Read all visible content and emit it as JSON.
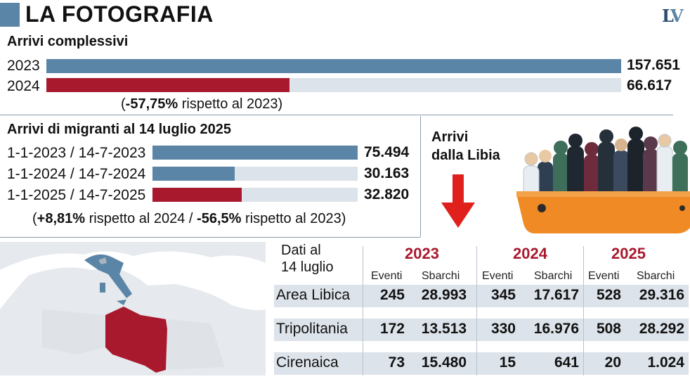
{
  "header": {
    "title": "LA FOTOGRAFIA",
    "logo": "LV"
  },
  "colors": {
    "blue": "#5b85a6",
    "red": "#a8192e",
    "track": "#dde3ea",
    "arrow": "#e0201c",
    "boat": "#f08a24"
  },
  "totals": {
    "title": "Arrivi complessivi",
    "rows": [
      {
        "label": "2023",
        "value_text": "157.651",
        "value": 157651,
        "color": "blue"
      },
      {
        "label": "2024",
        "value_text": "66.617",
        "value": 66617,
        "color": "red"
      }
    ],
    "note_open": "(",
    "note_pct": "-57,75%",
    "note_rest": " rispetto al 2023)"
  },
  "migrants": {
    "title": "Arrivi di migranti al 14 luglio 2025",
    "rows": [
      {
        "label": "1-1-2023 / 14-7-2023",
        "value_text": "75.494",
        "value": 75494,
        "color": "blue"
      },
      {
        "label": "1-1-2024 / 14-7-2024",
        "value_text": "30.163",
        "value": 30163,
        "color": "blue"
      },
      {
        "label": "1-1-2025 / 14-7-2025",
        "value_text": "32.820",
        "value": 32820,
        "color": "red"
      }
    ],
    "note_a": "(",
    "note_pct1": "+8,81%",
    "note_b": " rispetto al 2024 / ",
    "note_pct2": "-56,5%",
    "note_c": " rispetto al 2023)"
  },
  "libya": {
    "title_line1": "Arrivi",
    "title_line2": "dalla Libia"
  },
  "table": {
    "caption_line1": "Dati al",
    "caption_line2": "14 luglio",
    "years": [
      "2023",
      "2024",
      "2025"
    ],
    "sub_events": "Eventi",
    "sub_landings": "Sbarchi",
    "rows": [
      {
        "name": "Area Libica",
        "cells": [
          "245",
          "28.993",
          "345",
          "17.617",
          "528",
          "29.316"
        ]
      },
      {
        "name": "Tripolitania",
        "cells": [
          "172",
          "13.513",
          "330",
          "16.976",
          "508",
          "28.292"
        ]
      },
      {
        "name": "Cirenaica",
        "cells": [
          "73",
          "15.480",
          "15",
          "641",
          "20",
          "1.024"
        ]
      }
    ]
  },
  "chart_data": [
    {
      "type": "bar",
      "title": "Arrivi complessivi",
      "categories": [
        "2023",
        "2024"
      ],
      "values": [
        157651,
        66617
      ]
    },
    {
      "type": "bar",
      "title": "Arrivi di migranti al 14 luglio 2025",
      "categories": [
        "1-1-2023 / 14-7-2023",
        "1-1-2024 / 14-7-2024",
        "1-1-2025 / 14-7-2025"
      ],
      "values": [
        75494,
        30163,
        32820
      ]
    },
    {
      "type": "table",
      "title": "",
      "columns": [
        "",
        "2023 Eventi",
        "2023 Sbarchi",
        "2024 Eventi",
        "2024 Sbarchi",
        "2025 Eventi",
        "2025 Sbarchi"
      ],
      "rows": [
        [
          "Area Libica",
          245,
          28993,
          345,
          17617,
          528,
          29316
        ],
        [
          "Tripolitania",
          172,
          13513,
          330,
          16976,
          508,
          28292
        ],
        [
          "Cirenaica",
          73,
          15480,
          15,
          641,
          20,
          1024
        ]
      ]
    }
  ]
}
